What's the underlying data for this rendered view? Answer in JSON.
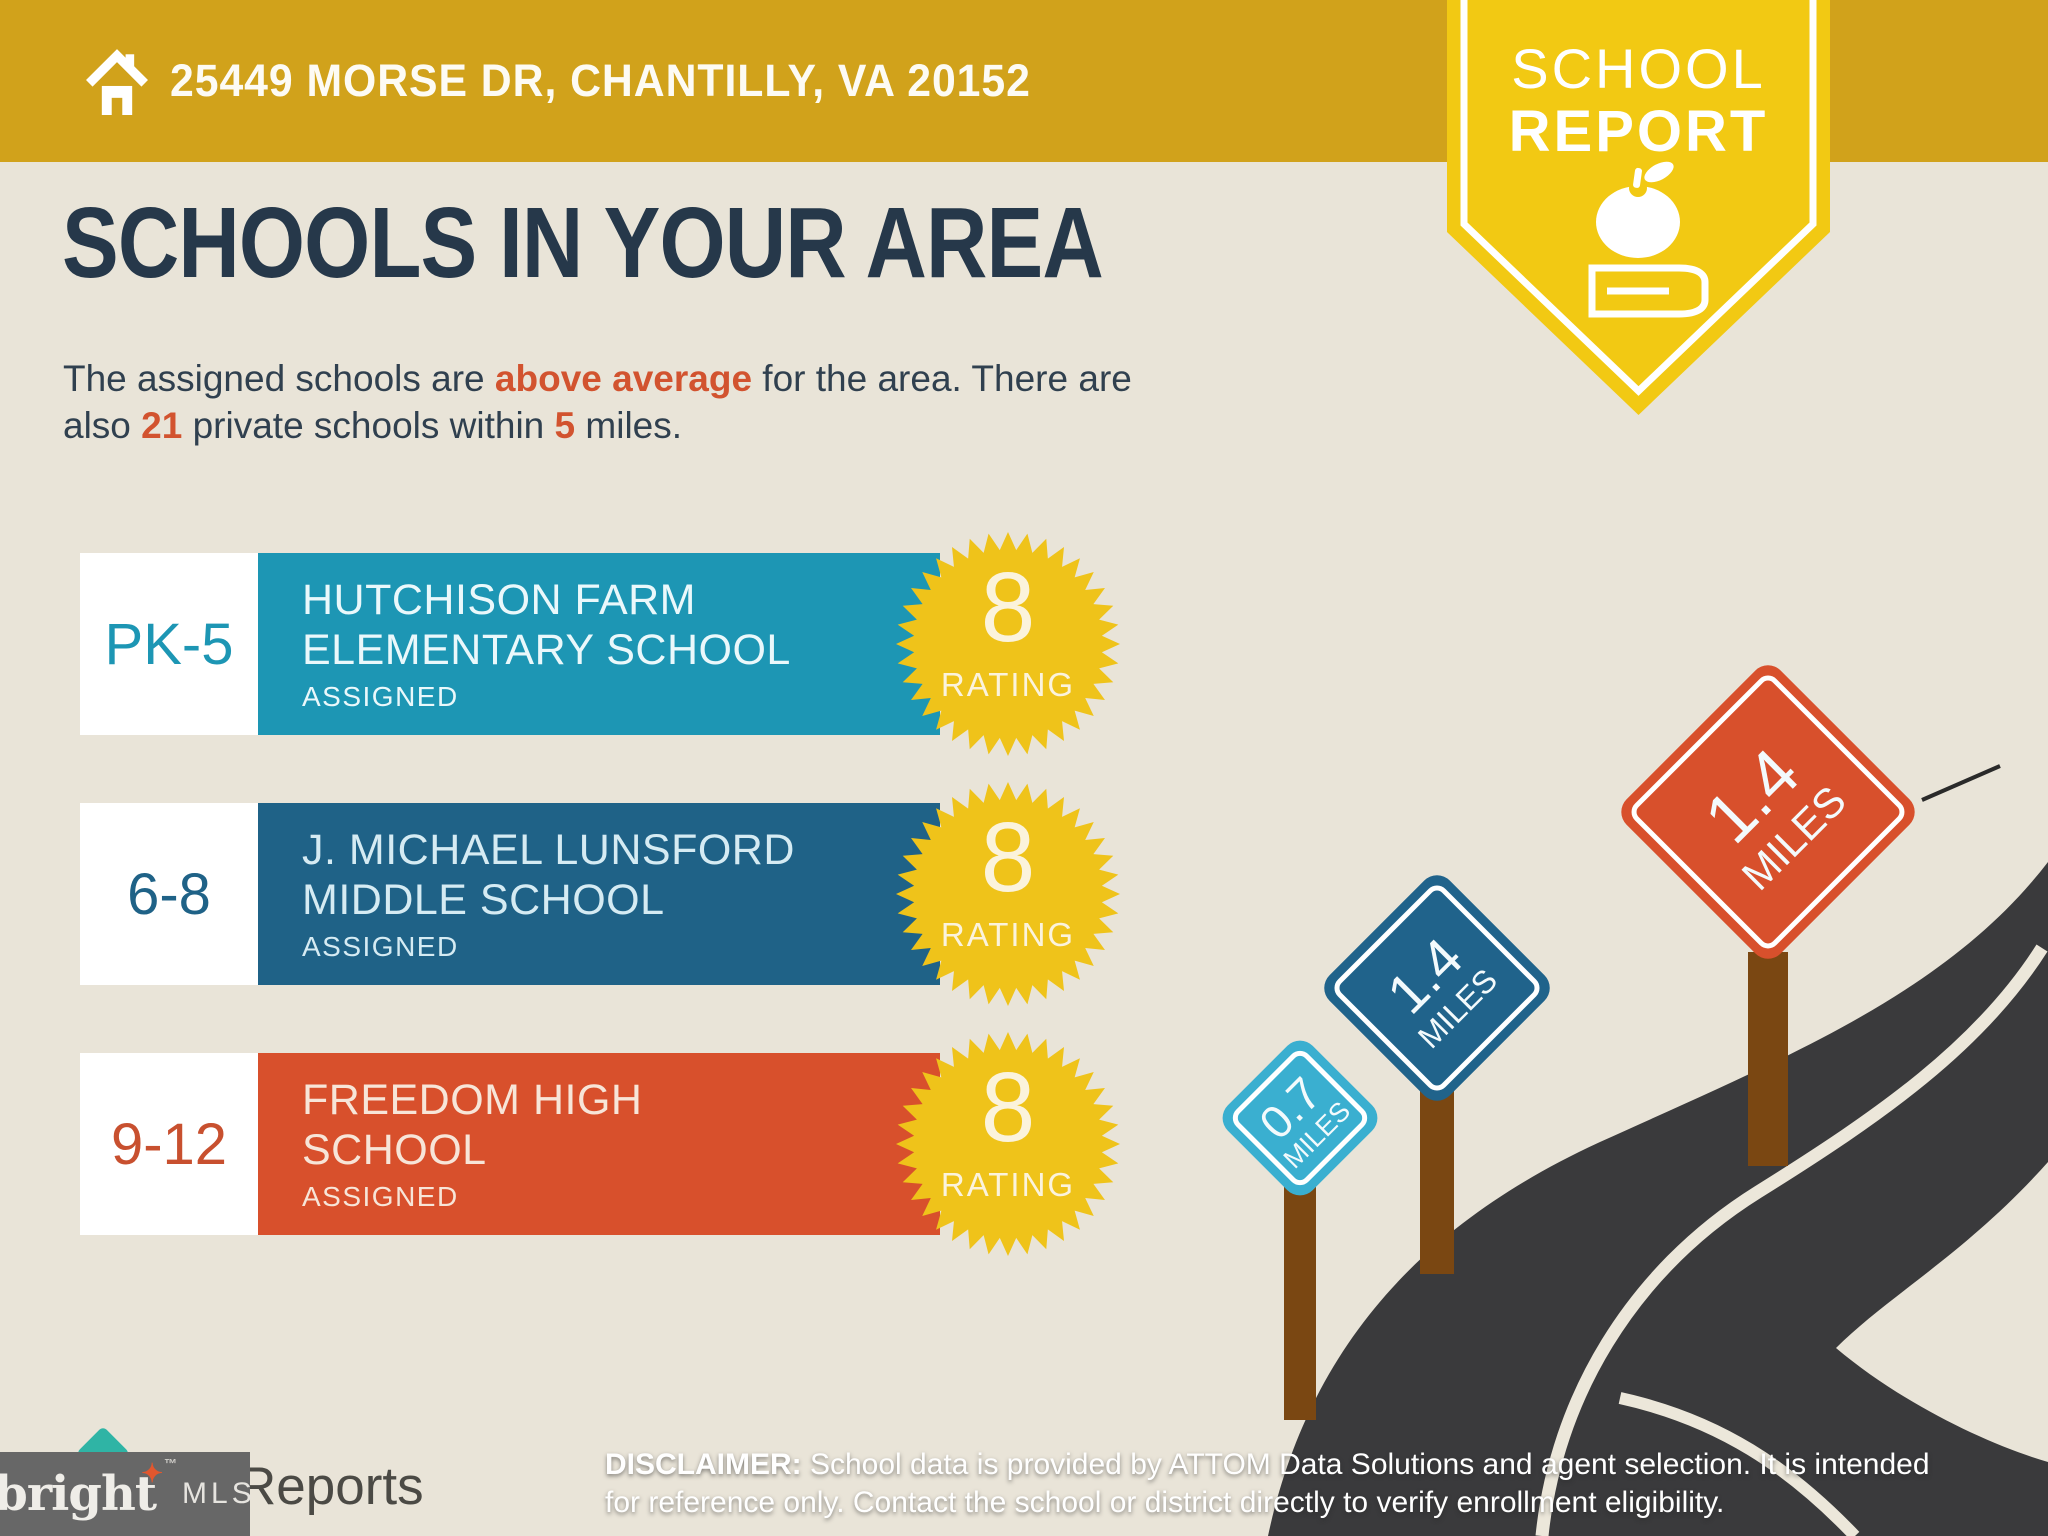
{
  "header": {
    "address": "25449 MORSE DR, CHANTILLY, VA 20152"
  },
  "pennant": {
    "line1": "SCHOOL",
    "line2": "REPORT",
    "icons": [
      "apple-icon",
      "book-icon"
    ]
  },
  "main": {
    "title": "SCHOOLS IN YOUR AREA",
    "subtitle": {
      "l1a": "The assigned schools are ",
      "l1b": "above average",
      "l1c": " for the area. There are",
      "l2a": "also ",
      "l2b": "21",
      "l2c": " private schools within ",
      "l2d": "5",
      "l2e": " miles."
    }
  },
  "schools": [
    {
      "grades": "PK-5",
      "name_line1": "HUTCHISON FARM",
      "name_line2": "ELEMENTARY SCHOOL",
      "status": "ASSIGNED",
      "rating": "8",
      "rating_label": "RATING",
      "bar_color": "#1D96B4"
    },
    {
      "grades": "6-8",
      "name_line1": "J. MICHAEL LUNSFORD",
      "name_line2": "MIDDLE SCHOOL",
      "status": "ASSIGNED",
      "rating": "8",
      "rating_label": "RATING",
      "bar_color": "#1F6287"
    },
    {
      "grades": "9-12",
      "name_line1": "FREEDOM HIGH",
      "name_line2": "SCHOOL",
      "status": "ASSIGNED",
      "rating": "8",
      "rating_label": "RATING",
      "bar_color": "#D8502C"
    }
  ],
  "signs": [
    {
      "distance": "0.7",
      "unit": "MILES",
      "color": "#3AAFD0"
    },
    {
      "distance": "1.4",
      "unit": "MILES",
      "color": "#20638B"
    },
    {
      "distance": "1.4",
      "unit": "MILES",
      "color": "#D8502C"
    }
  ],
  "footer": {
    "disclaimer_label": "DISCLAIMER:",
    "disclaimer_line1": " School data is provided by ATTOM Data Solutions and agent selection. It is intended",
    "disclaimer_line2": "for reference only. Contact the school or district directly to verify enrollment eligibility."
  },
  "watermark": {
    "brand": "bright",
    "tm": "™",
    "suffix": "MLS",
    "behind_text": "Reports",
    "spark_icon": "✦"
  },
  "colors": {
    "background": "#E9E4D8",
    "topbar_gold": "#D1A21B",
    "pennant_yellow": "#F2C913",
    "starburst_yellow": "#EFC31A",
    "heading_navy": "#26384A",
    "accent_orange": "#D2532F",
    "road_dark": "#3A3A3C",
    "road_line_cream": "#ECE7DA",
    "post_brown": "#7A4712",
    "watermark_gray": "#676767"
  }
}
